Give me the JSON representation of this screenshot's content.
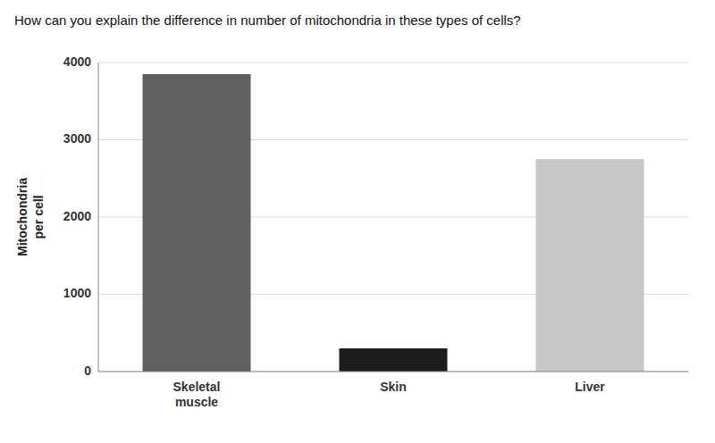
{
  "chart_data": {
    "type": "bar",
    "title": "How can you explain the difference in number of mitochondria in these types of cells?",
    "ylabel": "Mitochondria\nper cell",
    "categories": [
      "Skeletal\nmuscle",
      "Skin",
      "Liver"
    ],
    "values": [
      3850,
      300,
      2750
    ],
    "colors": [
      "#606060",
      "#1c1c1c",
      "#c8c8c8"
    ],
    "ylim": [
      0,
      4000
    ],
    "yticks": [
      0,
      1000,
      2000,
      3000,
      4000
    ],
    "grid": true
  }
}
